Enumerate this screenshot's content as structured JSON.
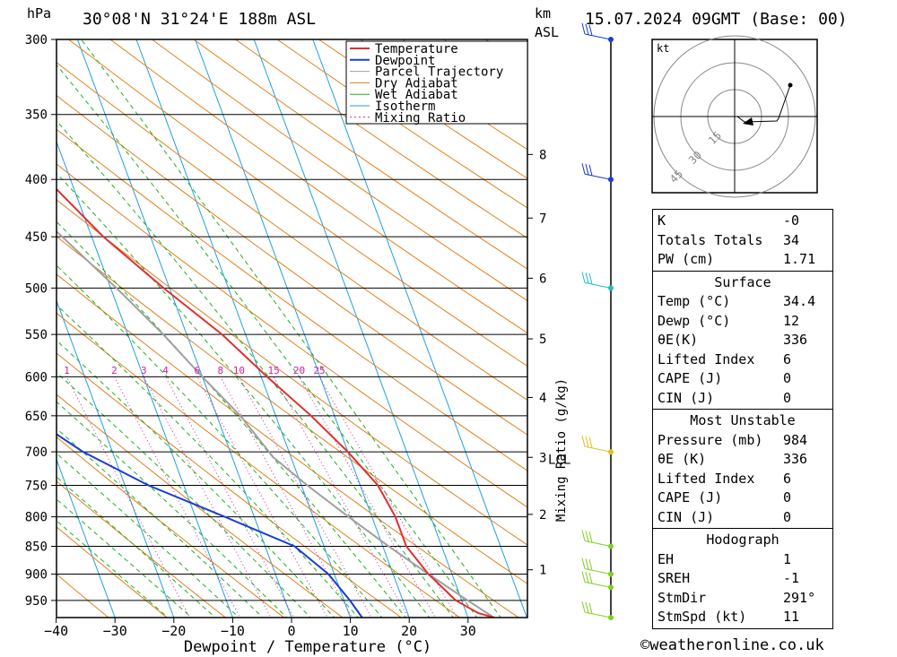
{
  "header": {
    "hpa_label": "hPa",
    "location": "30°08'N 31°24'E 188m ASL",
    "km_label": "km",
    "asl_label": "ASL",
    "datetime": "15.07.2024 09GMT (Base: 00)"
  },
  "chart_data": {
    "type": "skew-t",
    "xlabel": "Dewpoint / Temperature (°C)",
    "ylabel": "hPa",
    "mixing_ratio_axis_label": "Mixing Ratio (g/kg)",
    "x_ticks": [
      -40,
      -30,
      -20,
      -10,
      0,
      10,
      20,
      30
    ],
    "pressure_levels": [
      300,
      350,
      400,
      450,
      500,
      550,
      600,
      650,
      700,
      750,
      800,
      850,
      900,
      950
    ],
    "pressure_range": [
      300,
      984
    ],
    "temperature_range": [
      -40,
      40
    ],
    "km_ticks": [
      {
        "label": "1",
        "p": 892
      },
      {
        "label": "2",
        "p": 796
      },
      {
        "label": "3",
        "p": 708
      },
      {
        "label": "4",
        "p": 626
      },
      {
        "label": "5",
        "p": 555
      },
      {
        "label": "6",
        "p": 490
      },
      {
        "label": "7",
        "p": 433
      },
      {
        "label": "8",
        "p": 380
      }
    ],
    "lcl": {
      "label": "LCL",
      "p": 708
    },
    "mixing_ratio_labels": [
      "1",
      "2",
      "3",
      "4",
      "6",
      "8",
      "10",
      "15",
      "20",
      "25"
    ],
    "mixing_ratio_values": [
      1,
      2,
      3,
      4,
      6,
      8,
      10,
      15,
      20,
      25
    ],
    "legend": [
      "Temperature",
      "Dewpoint",
      "Parcel Trajectory",
      "Dry Adiabat",
      "Wet Adiabat",
      "Isotherm",
      "Mixing Ratio"
    ],
    "legend_position": "top-right",
    "colors": {
      "temperature": "#e03030",
      "dewpoint": "#1a3cd8",
      "parcel": "#a0a0a0",
      "dry_adiabat": "#e08020",
      "wet_adiabat": "#20b020",
      "isotherm": "#20a0e0",
      "mixing_ratio": "#d020a0"
    },
    "temperature": [
      {
        "p": 984,
        "t": 34.4
      },
      {
        "p": 975,
        "t": 32
      },
      {
        "p": 950,
        "t": 29
      },
      {
        "p": 900,
        "t": 26
      },
      {
        "p": 850,
        "t": 24
      },
      {
        "p": 800,
        "t": 24
      },
      {
        "p": 750,
        "t": 23
      },
      {
        "p": 700,
        "t": 20
      },
      {
        "p": 650,
        "t": 16
      },
      {
        "p": 600,
        "t": 11
      },
      {
        "p": 550,
        "t": 6
      },
      {
        "p": 500,
        "t": -1
      },
      {
        "p": 450,
        "t": -8
      },
      {
        "p": 400,
        "t": -14
      },
      {
        "p": 360,
        "t": -21
      }
    ],
    "dewpoint": [
      {
        "p": 984,
        "t": 12
      },
      {
        "p": 950,
        "t": 11
      },
      {
        "p": 900,
        "t": 9
      },
      {
        "p": 850,
        "t": 5
      },
      {
        "p": 800,
        "t": -5
      },
      {
        "p": 750,
        "t": -16
      },
      {
        "p": 700,
        "t": -25
      },
      {
        "p": 650,
        "t": -32
      },
      {
        "p": 600,
        "t": -38
      },
      {
        "p": 550,
        "t": -42
      },
      {
        "p": 500,
        "t": -36
      },
      {
        "p": 450,
        "t": -37
      },
      {
        "p": 400,
        "t": -45
      },
      {
        "p": 350,
        "t": -38
      },
      {
        "p": 300,
        "t": -39
      }
    ],
    "parcel": [
      {
        "p": 984,
        "t": 34.4
      },
      {
        "p": 950,
        "t": 31
      },
      {
        "p": 900,
        "t": 26
      },
      {
        "p": 850,
        "t": 21
      },
      {
        "p": 800,
        "t": 16
      },
      {
        "p": 750,
        "t": 11
      },
      {
        "p": 708,
        "t": 7
      },
      {
        "p": 650,
        "t": 4
      },
      {
        "p": 600,
        "t": 0
      },
      {
        "p": 550,
        "t": -4
      },
      {
        "p": 500,
        "t": -9
      },
      {
        "p": 450,
        "t": -15
      },
      {
        "p": 400,
        "t": -22
      },
      {
        "p": 350,
        "t": -30
      },
      {
        "p": 300,
        "t": -40
      }
    ],
    "wind_levels": [
      300,
      400,
      500,
      700,
      850,
      900,
      925,
      984
    ],
    "hodograph": {
      "unit_label": "kt",
      "ring_labels": [
        "15",
        "30",
        "45"
      ]
    }
  },
  "table": {
    "rows_top": [
      {
        "k": "K",
        "v": "-0"
      },
      {
        "k": "Totals Totals",
        "v": "34"
      },
      {
        "k": "PW (cm)",
        "v": "1.71"
      }
    ],
    "surface_title": "Surface",
    "surface": [
      {
        "k": "Temp (°C)",
        "v": "34.4"
      },
      {
        "k": "Dewp (°C)",
        "v": "12"
      },
      {
        "k": "θE(K)",
        "v": "336"
      },
      {
        "k": "Lifted Index",
        "v": "6"
      },
      {
        "k": "CAPE (J)",
        "v": "0"
      },
      {
        "k": "CIN (J)",
        "v": "0"
      }
    ],
    "mu_title": "Most Unstable",
    "mu": [
      {
        "k": "Pressure (mb)",
        "v": "984"
      },
      {
        "k": "θE (K)",
        "v": "336"
      },
      {
        "k": "Lifted Index",
        "v": "6"
      },
      {
        "k": "CAPE (J)",
        "v": "0"
      },
      {
        "k": "CIN (J)",
        "v": "0"
      }
    ],
    "hodo_title": "Hodograph",
    "hodo": [
      {
        "k": "EH",
        "v": "1"
      },
      {
        "k": "SREH",
        "v": "-1"
      },
      {
        "k": "StmDir",
        "v": "291°"
      },
      {
        "k": "StmSpd (kt)",
        "v": "11"
      }
    ]
  },
  "footer": "©weatheronline.co.uk"
}
